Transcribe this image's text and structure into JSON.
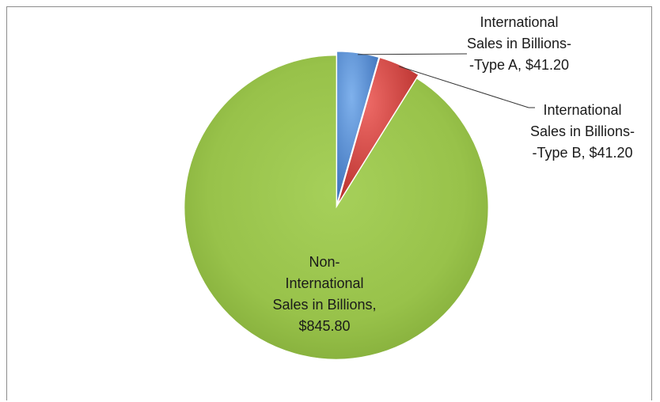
{
  "chart_data": {
    "type": "pie",
    "categories": [
      "International Sales in Billions--Type A",
      "International Sales in Billions--Type B",
      "Non-International Sales in Billions"
    ],
    "values": [
      41.2,
      41.2,
      845.8
    ],
    "colors": [
      "#4a86cf",
      "#d9403d",
      "#98c24a"
    ],
    "data_labels": [
      [
        "International",
        "Sales in Billions-",
        "-Type A,  $41.20"
      ],
      [
        "International",
        "Sales in Billions-",
        "-Type B,  $41.20"
      ],
      [
        "Non-",
        "International",
        "Sales in Billions,",
        "$845.80"
      ]
    ],
    "title": "",
    "legend": "none"
  }
}
